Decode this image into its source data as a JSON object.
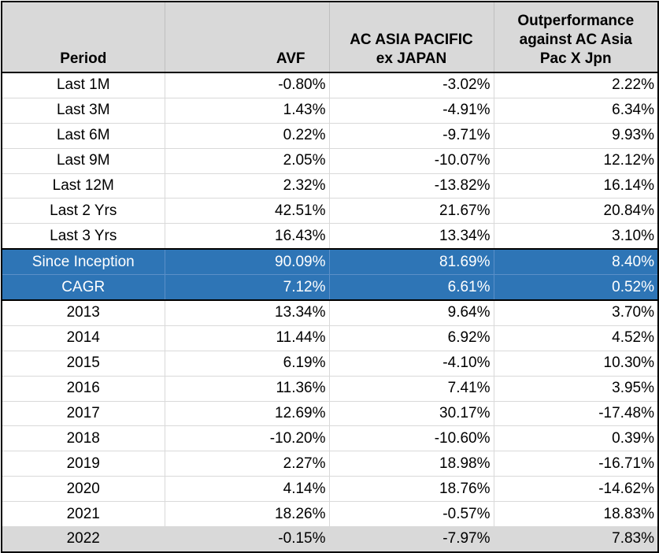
{
  "table": {
    "headers": {
      "period": "Period",
      "avf": "AVF",
      "index_line1": "AC ASIA PACIFIC",
      "index_line2": "ex JAPAN",
      "out_line1": "Outperformance",
      "out_line2": "against AC Asia",
      "out_line3": "Pac X Jpn"
    },
    "rows": [
      {
        "period": "Last 1M",
        "avf": "-0.80%",
        "index": "-3.02%",
        "out": "2.22%",
        "style": "normal"
      },
      {
        "period": "Last 3M",
        "avf": "1.43%",
        "index": "-4.91%",
        "out": "6.34%",
        "style": "normal"
      },
      {
        "period": "Last 6M",
        "avf": "0.22%",
        "index": "-9.71%",
        "out": "9.93%",
        "style": "normal"
      },
      {
        "period": "Last 9M",
        "avf": "2.05%",
        "index": "-10.07%",
        "out": "12.12%",
        "style": "normal"
      },
      {
        "period": "Last 12M",
        "avf": "2.32%",
        "index": "-13.82%",
        "out": "16.14%",
        "style": "normal"
      },
      {
        "period": "Last 2 Yrs",
        "avf": "42.51%",
        "index": "21.67%",
        "out": "20.84%",
        "style": "normal"
      },
      {
        "period": "Last 3 Yrs",
        "avf": "16.43%",
        "index": "13.34%",
        "out": "3.10%",
        "style": "normal"
      },
      {
        "period": "Since Inception",
        "avf": "90.09%",
        "index": "81.69%",
        "out": "8.40%",
        "style": "highlight-first"
      },
      {
        "period": "CAGR",
        "avf": "7.12%",
        "index": "6.61%",
        "out": "0.52%",
        "style": "highlight-last"
      },
      {
        "period": "2013",
        "avf": "13.34%",
        "index": "9.64%",
        "out": "3.70%",
        "style": "normal"
      },
      {
        "period": "2014",
        "avf": "11.44%",
        "index": "6.92%",
        "out": "4.52%",
        "style": "normal"
      },
      {
        "period": "2015",
        "avf": "6.19%",
        "index": "-4.10%",
        "out": "10.30%",
        "style": "normal"
      },
      {
        "period": "2016",
        "avf": "11.36%",
        "index": "7.41%",
        "out": "3.95%",
        "style": "normal"
      },
      {
        "period": "2017",
        "avf": "12.69%",
        "index": "30.17%",
        "out": "-17.48%",
        "style": "normal"
      },
      {
        "period": "2018",
        "avf": "-10.20%",
        "index": "-10.60%",
        "out": "0.39%",
        "style": "normal"
      },
      {
        "period": "2019",
        "avf": "2.27%",
        "index": "18.98%",
        "out": "-16.71%",
        "style": "normal"
      },
      {
        "period": "2020",
        "avf": "4.14%",
        "index": "18.76%",
        "out": "-14.62%",
        "style": "normal"
      },
      {
        "period": "2021",
        "avf": "18.26%",
        "index": "-0.57%",
        "out": "18.83%",
        "style": "normal"
      },
      {
        "period": "2022",
        "avf": "-0.15%",
        "index": "-7.97%",
        "out": "7.83%",
        "style": "footer"
      }
    ]
  },
  "colors": {
    "header_bg": "#d9d9d9",
    "highlight_bg": "#2e75b6",
    "highlight_text": "#ffffff",
    "footer_bg": "#d9d9d9"
  }
}
